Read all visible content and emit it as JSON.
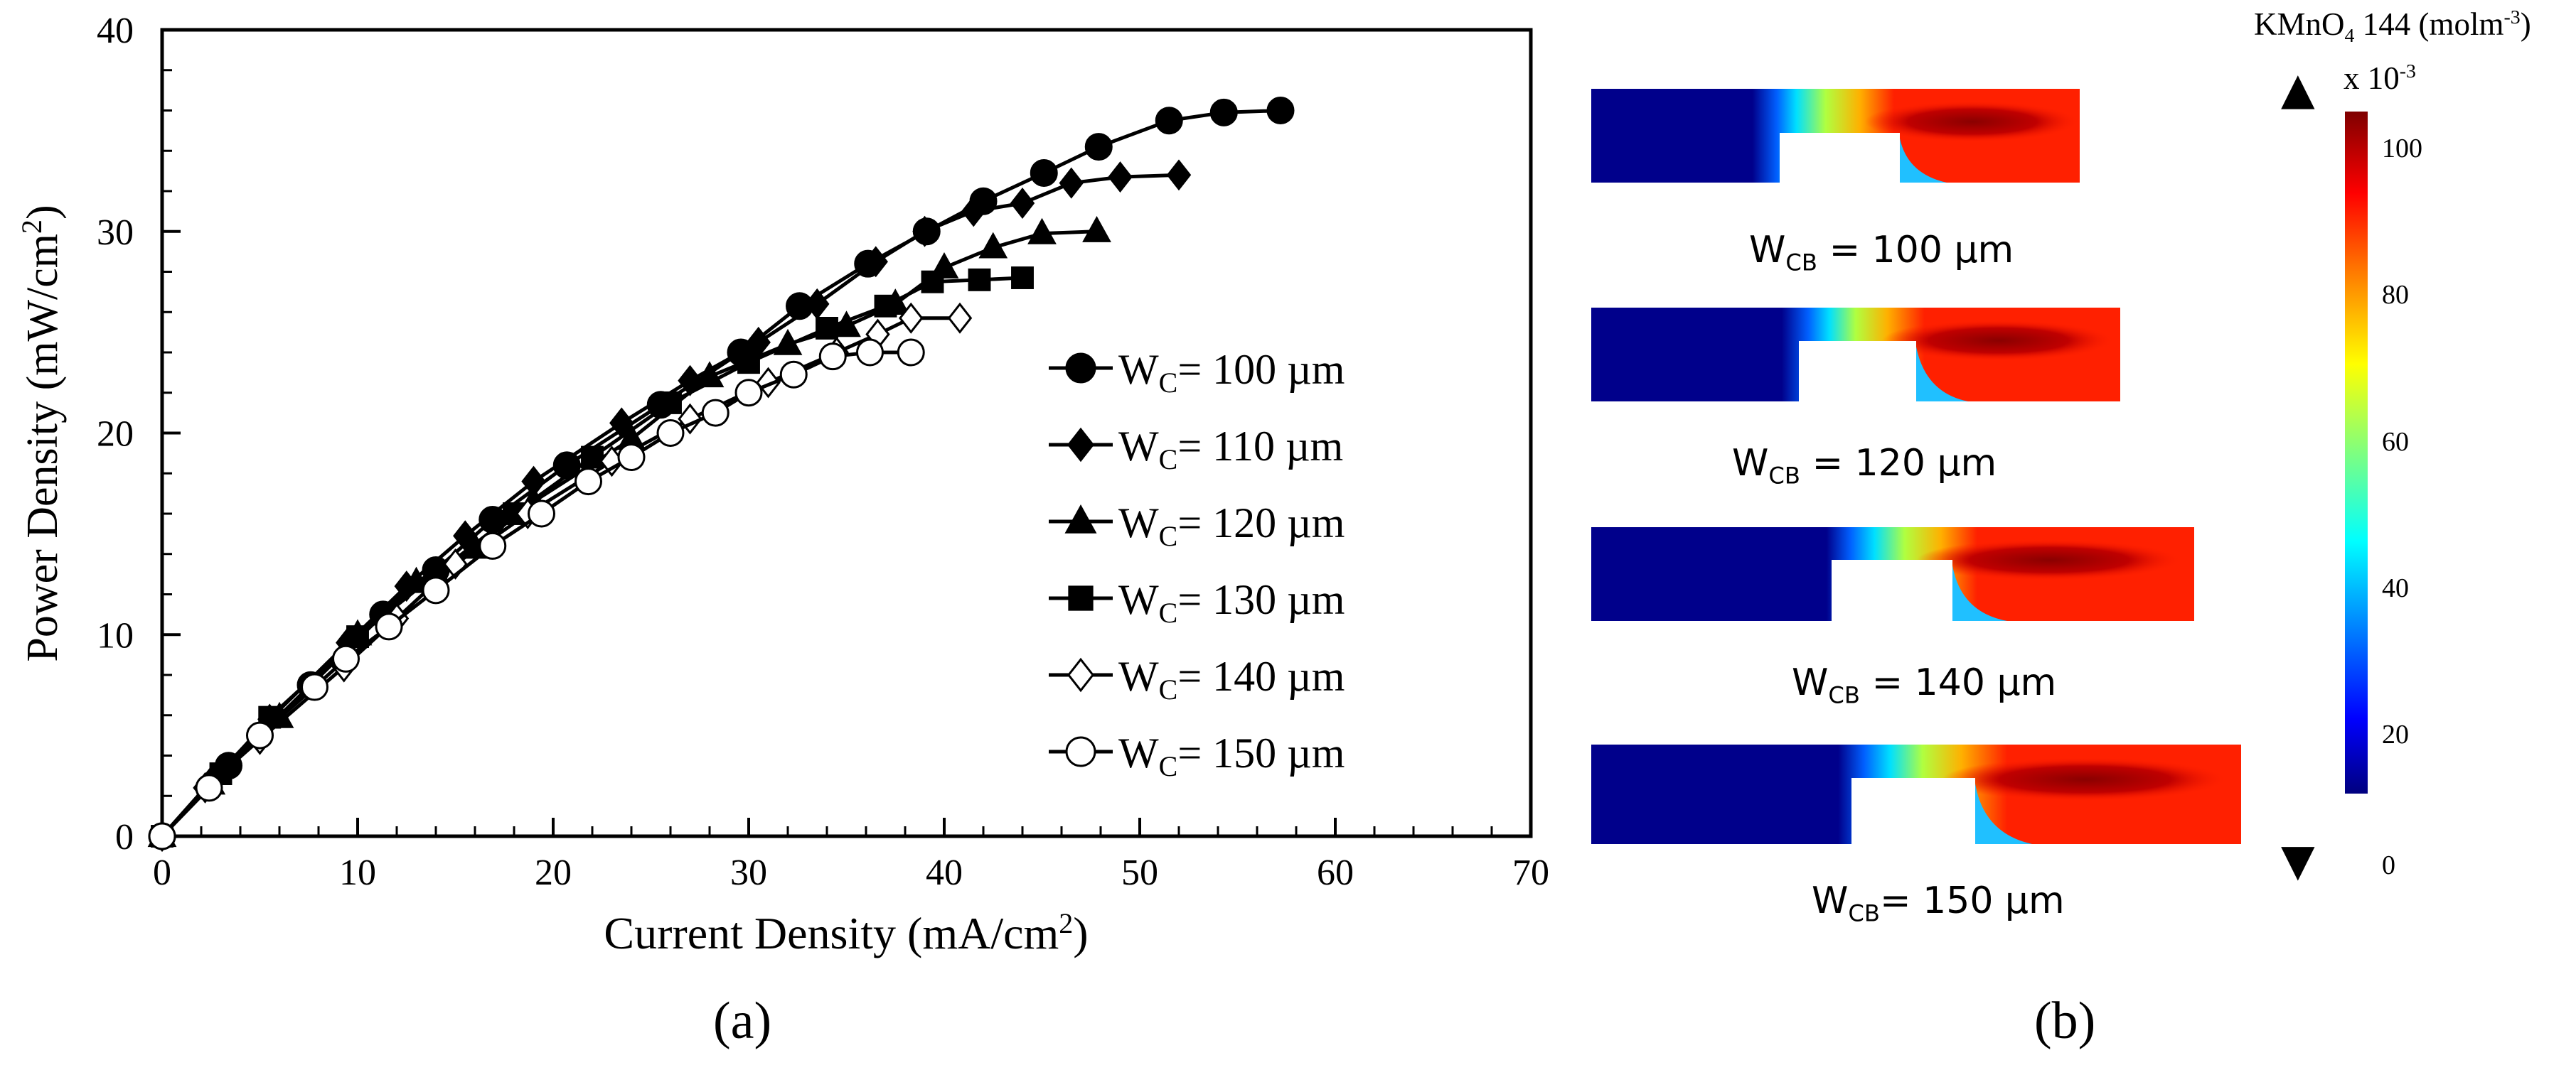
{
  "chart_data": {
    "type": "line",
    "xlabel": "Current Density (mA/cm",
    "xlabel_sup": "2",
    "xlabel_end": ")",
    "ylabel": "Power Density (mW/cm",
    "ylabel_sup": "2",
    "ylabel_end": ")",
    "xlim": [
      0,
      70
    ],
    "ylim": [
      0,
      40
    ],
    "xticks": [
      "0",
      "10",
      "20",
      "30",
      "40",
      "50",
      "60",
      "70"
    ],
    "yticks": [
      "0",
      "10",
      "20",
      "30",
      "40"
    ],
    "legend_position": "right-middle",
    "series": [
      {
        "name": "W",
        "name_sub": "C",
        "name_rest": "= 100 µm",
        "marker": "circle-filled",
        "x": [
          0,
          3.4,
          7.6,
          11.3,
          14,
          16.9,
          20.7,
          25.5,
          29.6,
          32.6,
          36.1,
          39.1,
          42,
          45.1,
          47.9,
          51.5,
          54.3,
          57.2
        ],
        "y": [
          0,
          3.5,
          7.5,
          11,
          13.2,
          15.7,
          18.4,
          21.4,
          24,
          26.3,
          28.4,
          30,
          31.5,
          32.9,
          34.2,
          35.5,
          35.9,
          36
        ]
      },
      {
        "name": "W",
        "name_sub": "C",
        "name_rest": "= 110 µm",
        "marker": "diamond-filled",
        "x": [
          0,
          2.5,
          5.5,
          9.5,
          12.5,
          15.5,
          19,
          23.5,
          27,
          30.5,
          33.5,
          36.5,
          39,
          41.5,
          44,
          46.5,
          49,
          52
        ],
        "y": [
          0,
          2.7,
          5.8,
          9.6,
          12.4,
          14.9,
          17.6,
          20.5,
          22.6,
          24.5,
          26.4,
          28.5,
          30,
          31,
          31.4,
          32.4,
          32.7,
          32.8
        ]
      },
      {
        "name": "W",
        "name_sub": "C",
        "name_rest": "= 120 µm",
        "marker": "triangle-filled",
        "x": [
          0,
          2.5,
          6,
          10,
          13,
          16,
          19,
          24,
          28,
          32,
          35,
          37.5,
          40,
          42.5,
          45,
          47.8
        ],
        "y": [
          0,
          2.6,
          5.9,
          10,
          12.6,
          14.3,
          16.6,
          19.7,
          22.8,
          24.4,
          25.3,
          26.4,
          28.2,
          29.2,
          29.9,
          30
        ]
      },
      {
        "name": "W",
        "name_sub": "C",
        "name_rest": "= 130 µm",
        "marker": "square-filled",
        "x": [
          0,
          3,
          5.5,
          10,
          14,
          18,
          22,
          26,
          30,
          34,
          37,
          39.4,
          41.8,
          44
        ],
        "y": [
          0,
          3.1,
          5.9,
          9.9,
          13,
          16,
          18.8,
          21.5,
          23.5,
          25.2,
          26.3,
          27.5,
          27.6,
          27.7
        ]
      },
      {
        "name": "W",
        "name_sub": "C",
        "name_rest": "= 140 µm",
        "marker": "diamond-open",
        "x": [
          0,
          2.2,
          5,
          9.3,
          12,
          15,
          18.7,
          23,
          27,
          31,
          34.5,
          36.6,
          38.3,
          40.8
        ],
        "y": [
          0,
          2.4,
          4.8,
          8.4,
          10.8,
          13.5,
          16,
          18.6,
          20.7,
          22.5,
          24,
          24.9,
          25.7,
          25.7
        ]
      },
      {
        "name": "W",
        "name_sub": "C",
        "name_rest": "= 150 µm",
        "marker": "circle-open",
        "x": [
          0,
          2.4,
          5,
          7.8,
          9.4,
          11.6,
          14,
          16.9,
          19.4,
          21.8,
          24,
          26,
          28.3,
          30,
          32.3,
          34.3,
          36.2,
          38.3
        ],
        "y": [
          0,
          2.4,
          5,
          7.4,
          8.8,
          10.4,
          12.2,
          14.4,
          16,
          17.6,
          18.8,
          20,
          21,
          22,
          22.9,
          23.8,
          24,
          24
        ]
      }
    ]
  },
  "labels": {
    "panel_a": "(a)",
    "panel_b": "(b)"
  },
  "panel_b": {
    "colorbar": {
      "species": "KMnO",
      "species_sub": "4",
      "sample": " 144 (molm",
      "unit_sup": "-3",
      "unit_end": ")",
      "multiplier": "x 10",
      "multiplier_sup": "-3",
      "ticks": [
        "100",
        "80",
        "60",
        "40",
        "20",
        "0"
      ],
      "colors": [
        "#00007f",
        "#0000ff",
        "#007fff",
        "#00ffff",
        "#7fff7f",
        "#ffff00",
        "#ff7f00",
        "#ff0000",
        "#7f0000"
      ],
      "max_arrow": "▲",
      "min_arrow": "▼"
    },
    "channels": [
      {
        "w": "W",
        "sub": "CB",
        "rest": " = 100 µm"
      },
      {
        "w": "W",
        "sub": "CB",
        "rest": " = 120 µm"
      },
      {
        "w": "W",
        "sub": "CB",
        "rest": " = 140 µm"
      },
      {
        "w": "W",
        "sub": "CB",
        "rest": "= 150 µm"
      }
    ]
  }
}
